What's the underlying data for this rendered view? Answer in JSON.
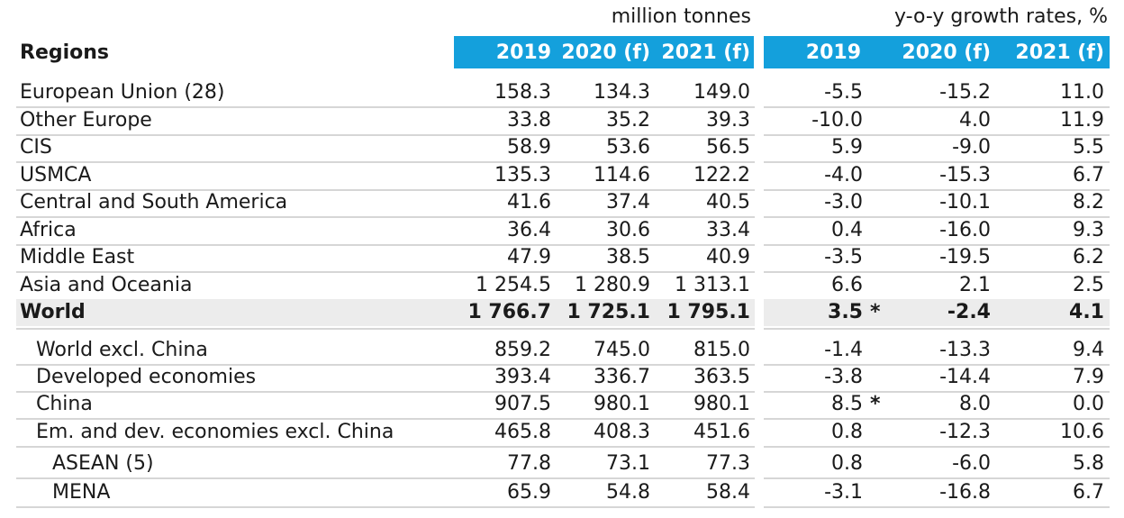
{
  "units": {
    "left": "million tonnes",
    "right": "y-o-y growth rates, %"
  },
  "header": {
    "regions": "Regions",
    "cols": [
      "2019",
      "2020 (f)",
      "2021 (f)",
      "2019",
      "2020 (f)",
      "2021 (f)"
    ]
  },
  "rows": [
    {
      "label": "European Union (28)",
      "v": [
        "158.3",
        "134.3",
        "149.0",
        "-5.5",
        "-15.2",
        "11.0"
      ],
      "star": ""
    },
    {
      "label": "Other Europe",
      "v": [
        "33.8",
        "35.2",
        "39.3",
        "-10.0",
        "4.0",
        "11.9"
      ],
      "star": ""
    },
    {
      "label": "CIS",
      "v": [
        "58.9",
        "53.6",
        "56.5",
        "5.9",
        "-9.0",
        "5.5"
      ],
      "star": ""
    },
    {
      "label": "USMCA",
      "v": [
        "135.3",
        "114.6",
        "122.2",
        "-4.0",
        "-15.3",
        "6.7"
      ],
      "star": ""
    },
    {
      "label": "Central and South America",
      "v": [
        "41.6",
        "37.4",
        "40.5",
        "-3.0",
        "-10.1",
        "8.2"
      ],
      "star": ""
    },
    {
      "label": "Africa",
      "v": [
        "36.4",
        "30.6",
        "33.4",
        "0.4",
        "-16.0",
        "9.3"
      ],
      "star": ""
    },
    {
      "label": "Middle East",
      "v": [
        "47.9",
        "38.5",
        "40.9",
        "-3.5",
        "-19.5",
        "6.2"
      ],
      "star": ""
    },
    {
      "label": "Asia and Oceania",
      "v": [
        "1 254.5",
        "1 280.9",
        "1 313.1",
        "6.6",
        "2.1",
        "2.5"
      ],
      "star": ""
    },
    {
      "label": "World",
      "v": [
        "1 766.7",
        "1 725.1",
        "1 795.1",
        "3.5",
        "-2.4",
        "4.1"
      ],
      "star": "*"
    },
    {
      "label": "World excl. China",
      "v": [
        "859.2",
        "745.0",
        "815.0",
        "-1.4",
        "-13.3",
        "9.4"
      ],
      "star": ""
    },
    {
      "label": "Developed economies",
      "v": [
        "393.4",
        "336.7",
        "363.5",
        "-3.8",
        "-14.4",
        "7.9"
      ],
      "star": ""
    },
    {
      "label": "China",
      "v": [
        "907.5",
        "980.1",
        "980.1",
        "8.5",
        "8.0",
        "0.0"
      ],
      "star": "*"
    },
    {
      "label": "Em. and dev. economies excl. China",
      "v": [
        "465.8",
        "408.3",
        "451.6",
        "0.8",
        "-12.3",
        "10.6"
      ],
      "star": ""
    },
    {
      "label": "ASEAN (5)",
      "v": [
        "77.8",
        "73.1",
        "77.3",
        "0.8",
        "-6.0",
        "5.8"
      ],
      "star": ""
    },
    {
      "label": "MENA",
      "v": [
        "65.9",
        "54.8",
        "58.4",
        "-3.1",
        "-16.8",
        "6.7"
      ],
      "star": ""
    }
  ]
}
